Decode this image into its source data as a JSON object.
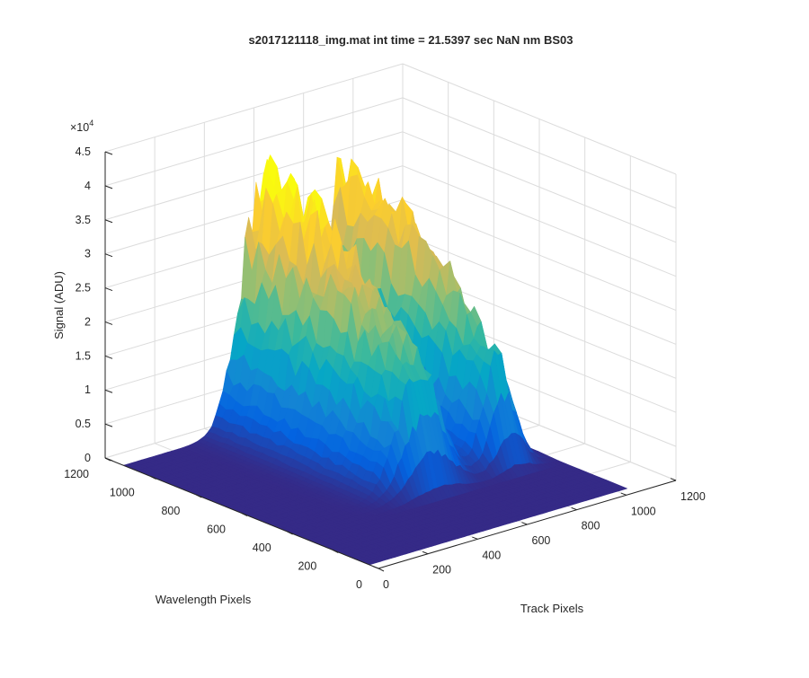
{
  "chart_data": {
    "type": "surface",
    "title": "s2017121118_img.mat int time = 21.5397 sec  NaN nm BS03",
    "xlabel": "Track Pixels",
    "ylabel": "Wavelength Pixels",
    "zlabel": "Signal (ADU)",
    "z_exponent_label": "×10",
    "z_exponent_power": "4",
    "xlim": [
      0,
      1200
    ],
    "ylim": [
      0,
      1200
    ],
    "zlim": [
      0,
      45000
    ],
    "x_ticks": [
      "0",
      "200",
      "400",
      "600",
      "800",
      "1000",
      "1200"
    ],
    "y_ticks": [
      "0",
      "200",
      "400",
      "600",
      "800",
      "1000",
      "1200"
    ],
    "z_ticks": [
      "0",
      "0.5",
      "1",
      "1.5",
      "2",
      "2.5",
      "3",
      "3.5",
      "4",
      "4.5"
    ],
    "grid": true,
    "colormap": "parula",
    "colormap_stops": [
      "#352a87",
      "#0363e1",
      "#1485d4",
      "#06a7c6",
      "#38b99e",
      "#92bf73",
      "#d9ba56",
      "#fcce2e",
      "#f9fb0e"
    ],
    "data_extent": {
      "x": [
        0,
        1040
      ],
      "y": [
        40,
        1120
      ]
    },
    "peaks": [
      {
        "track_center": 560,
        "track_sigma": 85,
        "wavelength_center": 1060,
        "wavelength_sigma": 520,
        "amplitude": 36000
      },
      {
        "track_center": 875,
        "track_sigma": 55,
        "wavelength_center": 1060,
        "wavelength_sigma": 520,
        "amplitude": 33500
      }
    ]
  }
}
